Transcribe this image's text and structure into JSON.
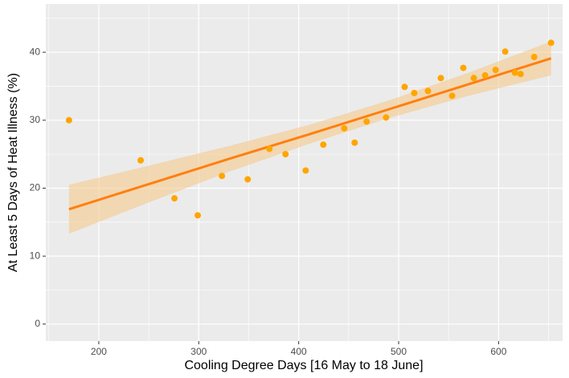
{
  "chart_data": {
    "type": "scatter",
    "x_label": "Cooling Degree Days [16 May to 18 June]",
    "y_label": "At Least 5 Days of Heat Illness (%)",
    "x": [
      170.2,
      241.9,
      275.7,
      299,
      323.2,
      349,
      370.7,
      386.8,
      407,
      424.6,
      445.6,
      456,
      468,
      487.4,
      506,
      515.6,
      529.3,
      542.2,
      553.5,
      564.7,
      575.2,
      586.5,
      597,
      606.6,
      616.3,
      622,
      635.6,
      652.5
    ],
    "values": [
      30,
      24.1,
      18.5,
      16.0,
      21.8,
      21.3,
      25.8,
      25.0,
      22.6,
      26.4,
      28.8,
      26.7,
      29.8,
      30.4,
      34.9,
      34.0,
      34.3,
      36.2,
      33.6,
      37.7,
      36.2,
      36.6,
      37.4,
      40.1,
      37.0,
      36.8,
      39.3,
      41.4
    ],
    "color": "#ffa500",
    "fit": {
      "color": "#ff7f0e",
      "band_color": "#f5c98c",
      "x": [
        170.2,
        250,
        330,
        410,
        490,
        570,
        652.5
      ],
      "values": [
        16.9,
        20.6,
        24.3,
        27.9,
        31.6,
        35.3,
        39.1
      ],
      "lower": [
        13.3,
        17.9,
        22.4,
        26.5,
        30.3,
        33.6,
        36.6
      ],
      "upper": [
        20.5,
        23.3,
        26.2,
        29.3,
        32.9,
        37.0,
        41.6
      ]
    },
    "xlim": [
      147,
      664
    ],
    "ylim": [
      -2.5,
      47.1
    ],
    "xticks": [
      200,
      300,
      400,
      500,
      600
    ],
    "yticks": [
      0,
      10,
      20,
      30,
      40
    ],
    "minor_xticks": [
      150,
      250,
      350,
      450,
      550,
      650
    ],
    "minor_yticks": [
      5,
      15,
      25,
      35,
      45
    ],
    "grid": true
  }
}
